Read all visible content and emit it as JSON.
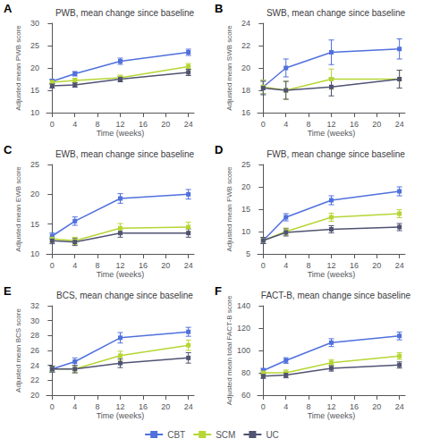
{
  "chart_data": [
    {
      "type": "line",
      "title": "PWB, mean change since baseline",
      "annotations": [
        "A"
      ],
      "xlabel": "Time (weeks)",
      "ylabel": "Adjusted mean PWB score",
      "x": [
        0,
        4,
        12,
        24
      ],
      "xlim": [
        -1,
        25
      ],
      "xticks": [
        0,
        4,
        8,
        12,
        16,
        20,
        24
      ],
      "ylim": [
        10,
        30
      ],
      "yticks": [
        10,
        15,
        20,
        25,
        30
      ],
      "grid": false,
      "legend": "bottom",
      "series": [
        {
          "name": "CBT",
          "marker": "square",
          "line_style": "solid",
          "values": [
            17.0,
            18.7,
            21.5,
            23.5
          ],
          "errors": [
            0.5,
            0.5,
            0.7,
            0.7
          ]
        },
        {
          "name": "SCM",
          "marker": "square",
          "line_style": "solid",
          "values": [
            16.8,
            17.2,
            17.8,
            20.3
          ],
          "errors": [
            0.5,
            0.5,
            0.6,
            0.7
          ]
        },
        {
          "name": "UC",
          "marker": "square",
          "line_style": "solid",
          "values": [
            16.0,
            16.2,
            17.5,
            19.0
          ],
          "errors": [
            0.5,
            0.5,
            0.6,
            0.7
          ]
        }
      ]
    },
    {
      "type": "line",
      "title": "SWB, mean change since baseline",
      "annotations": [
        "B"
      ],
      "xlabel": "Time (weeks)",
      "ylabel": "Adjusted mean SWB score",
      "x": [
        0,
        4,
        12,
        24
      ],
      "xlim": [
        -1,
        25
      ],
      "xticks": [
        0,
        4,
        8,
        12,
        16,
        20,
        24
      ],
      "ylim": [
        16,
        24
      ],
      "yticks": [
        16,
        18,
        20,
        22,
        24
      ],
      "grid": false,
      "legend": "bottom",
      "series": [
        {
          "name": "CBT",
          "marker": "square",
          "line_style": "solid",
          "values": [
            18.3,
            20.0,
            21.4,
            21.7
          ],
          "errors": [
            0.6,
            0.8,
            1.1,
            0.9
          ]
        },
        {
          "name": "SCM",
          "marker": "square",
          "line_style": "solid",
          "values": [
            18.3,
            18.0,
            19.0,
            19.0
          ],
          "errors": [
            0.6,
            0.8,
            0.9,
            0.8
          ]
        },
        {
          "name": "UC",
          "marker": "square",
          "line_style": "solid",
          "values": [
            18.2,
            18.0,
            18.3,
            19.0
          ],
          "errors": [
            0.6,
            0.8,
            0.8,
            0.8
          ]
        }
      ]
    },
    {
      "type": "line",
      "title": "EWB, mean change since baseline",
      "annotations": [
        "C"
      ],
      "xlabel": "Time (weeks)",
      "ylabel": "Adjusted mean EWB score",
      "x": [
        0,
        4,
        12,
        24
      ],
      "xlim": [
        -1,
        25
      ],
      "xticks": [
        0,
        4,
        8,
        12,
        16,
        20,
        24
      ],
      "ylim": [
        10,
        25
      ],
      "yticks": [
        10,
        15,
        20,
        25
      ],
      "grid": false,
      "legend": "bottom",
      "series": [
        {
          "name": "CBT",
          "marker": "square",
          "line_style": "solid",
          "values": [
            13.0,
            15.5,
            19.3,
            20.0
          ],
          "errors": [
            0.5,
            0.7,
            0.8,
            0.8
          ]
        },
        {
          "name": "SCM",
          "marker": "square",
          "line_style": "solid",
          "values": [
            12.5,
            12.2,
            14.3,
            14.5
          ],
          "errors": [
            0.5,
            0.6,
            0.8,
            0.8
          ]
        },
        {
          "name": "UC",
          "marker": "square",
          "line_style": "solid",
          "values": [
            12.2,
            12.0,
            13.5,
            13.5
          ],
          "errors": [
            0.5,
            0.6,
            0.7,
            0.7
          ]
        }
      ]
    },
    {
      "type": "line",
      "title": "FWB, mean change since baseline",
      "annotations": [
        "D"
      ],
      "xlabel": "Time (weeks)",
      "ylabel": "Adjusted mean FWB score",
      "x": [
        0,
        4,
        12,
        24
      ],
      "xlim": [
        -1,
        25
      ],
      "xticks": [
        0,
        4,
        8,
        12,
        16,
        20,
        24
      ],
      "ylim": [
        5,
        25
      ],
      "yticks": [
        5,
        10,
        15,
        20,
        25
      ],
      "grid": false,
      "legend": "bottom",
      "series": [
        {
          "name": "CBT",
          "marker": "square",
          "line_style": "solid",
          "values": [
            8.0,
            13.2,
            17.0,
            19.0
          ],
          "errors": [
            0.7,
            0.8,
            1.0,
            1.0
          ]
        },
        {
          "name": "SCM",
          "marker": "square",
          "line_style": "solid",
          "values": [
            8.0,
            10.0,
            13.2,
            14.0
          ],
          "errors": [
            0.7,
            0.8,
            0.9,
            0.9
          ]
        },
        {
          "name": "UC",
          "marker": "square",
          "line_style": "solid",
          "values": [
            8.0,
            9.8,
            10.5,
            11.0
          ],
          "errors": [
            0.7,
            0.8,
            0.8,
            0.8
          ]
        }
      ]
    },
    {
      "type": "line",
      "title": "BCS, mean change since baseline",
      "annotations": [
        "E"
      ],
      "xlabel": "Time (weeks)",
      "ylabel": "Adjusted mean BCS score",
      "x": [
        0,
        4,
        12,
        24
      ],
      "xlim": [
        -1,
        25
      ],
      "xticks": [
        0,
        4,
        8,
        12,
        16,
        20,
        24
      ],
      "ylim": [
        20,
        32
      ],
      "yticks": [
        20,
        22,
        24,
        26,
        28,
        30,
        32
      ],
      "grid": false,
      "legend": "bottom",
      "series": [
        {
          "name": "CBT",
          "marker": "square",
          "line_style": "solid",
          "values": [
            23.5,
            24.5,
            27.7,
            28.5
          ],
          "errors": [
            0.4,
            0.5,
            0.7,
            0.6
          ]
        },
        {
          "name": "SCM",
          "marker": "square",
          "line_style": "solid",
          "values": [
            23.5,
            23.5,
            25.3,
            26.7
          ],
          "errors": [
            0.4,
            0.5,
            0.6,
            0.7
          ]
        },
        {
          "name": "UC",
          "marker": "square",
          "line_style": "solid",
          "values": [
            23.5,
            23.5,
            24.3,
            25.0
          ],
          "errors": [
            0.4,
            0.5,
            0.6,
            0.7
          ]
        }
      ]
    },
    {
      "type": "line",
      "title": "FACT-B, mean change since baseline",
      "annotations": [
        "F"
      ],
      "xlabel": "Time (weeks)",
      "ylabel": "Adjusted mean total FACT-B score",
      "x": [
        0,
        4,
        12,
        24
      ],
      "xlim": [
        -1,
        25
      ],
      "xticks": [
        0,
        4,
        8,
        12,
        16,
        20,
        24
      ],
      "ylim": [
        60,
        140
      ],
      "yticks": [
        60,
        80,
        100,
        120,
        140
      ],
      "grid": false,
      "legend": "bottom",
      "series": [
        {
          "name": "CBT",
          "marker": "square",
          "line_style": "solid",
          "values": [
            82.0,
            91.0,
            107.0,
            113.0
          ],
          "errors": [
            2.0,
            2.5,
            3.5,
            3.5
          ]
        },
        {
          "name": "SCM",
          "marker": "square",
          "line_style": "solid",
          "values": [
            80.0,
            80.0,
            89.0,
            95.0
          ],
          "errors": [
            2.0,
            2.5,
            2.8,
            3.0
          ]
        },
        {
          "name": "UC",
          "marker": "square",
          "line_style": "solid",
          "values": [
            77.0,
            78.0,
            84.0,
            87.0
          ],
          "errors": [
            2.0,
            2.5,
            2.5,
            2.8
          ]
        }
      ]
    }
  ]
}
